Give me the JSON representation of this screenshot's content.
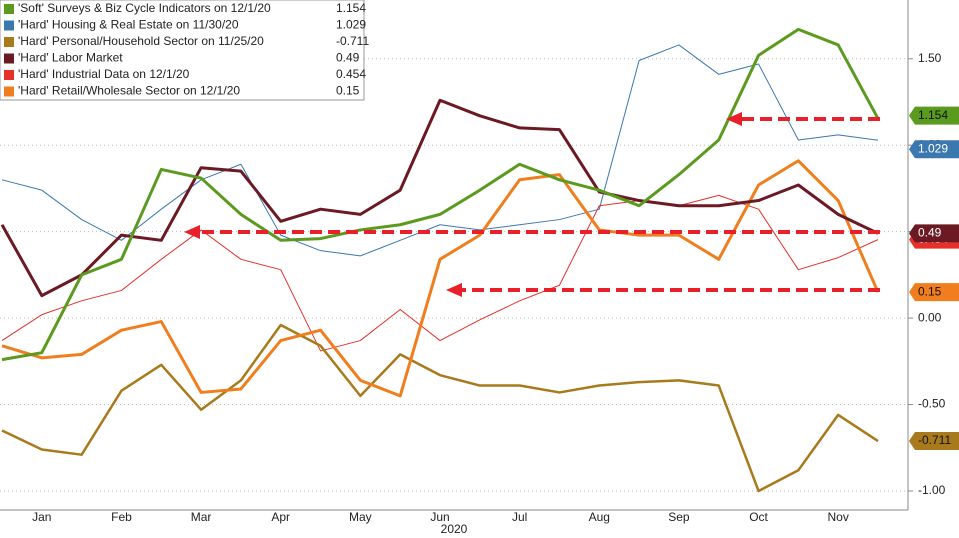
{
  "chart_data": {
    "type": "line",
    "categories": [
      null,
      "Jan",
      null,
      "Feb",
      null,
      "Mar",
      null,
      "Apr",
      null,
      "May",
      null,
      "Jun",
      null,
      "Jul",
      null,
      "Aug",
      null,
      "Sep",
      null,
      "Oct",
      null,
      "Nov",
      null
    ],
    "x_label": "2020",
    "series": [
      {
        "name": "'Soft' Surveys & Biz Cycle Indicators on 12/1/20",
        "color": "#5a9a1e",
        "values": [
          -0.24,
          -0.2,
          0.25,
          0.34,
          0.86,
          0.81,
          0.6,
          0.45,
          0.46,
          0.51,
          0.54,
          0.6,
          0.74,
          0.89,
          0.8,
          0.74,
          0.65,
          0.83,
          1.03,
          1.52,
          1.67,
          1.58,
          1.154
        ]
      },
      {
        "name": "'Hard' Housing & Real Estate on 11/30/20",
        "color": "#3b78b0",
        "values": [
          0.8,
          0.74,
          0.57,
          0.45,
          0.63,
          0.8,
          0.89,
          0.48,
          0.39,
          0.36,
          0.45,
          0.54,
          0.51,
          0.54,
          0.57,
          0.63,
          1.49,
          1.58,
          1.41,
          1.47,
          1.03,
          1.06,
          1.029
        ]
      },
      {
        "name": "'Hard' Personal/Household Sector on 11/25/20",
        "color": "#a87a1c",
        "values": [
          -0.65,
          -0.76,
          -0.79,
          -0.42,
          -0.27,
          -0.53,
          -0.36,
          -0.04,
          -0.16,
          -0.45,
          -0.21,
          -0.33,
          -0.39,
          -0.39,
          -0.43,
          -0.39,
          -0.37,
          -0.36,
          -0.39,
          -1.0,
          -0.88,
          -0.56,
          -0.711
        ]
      },
      {
        "name": "'Hard' Labor Market",
        "color": "#6b1a24",
        "values": [
          0.54,
          0.13,
          0.25,
          0.48,
          0.45,
          0.87,
          0.85,
          0.56,
          0.63,
          0.6,
          0.74,
          1.26,
          1.17,
          1.1,
          1.09,
          0.73,
          0.68,
          0.65,
          0.65,
          0.68,
          0.77,
          0.6,
          0.49
        ]
      },
      {
        "name": "'Hard' Industrial Data on 12/1/20",
        "color": "#e8302a",
        "values": [
          -0.13,
          0.02,
          0.1,
          0.16,
          0.34,
          0.51,
          0.34,
          0.28,
          -0.19,
          -0.13,
          0.05,
          -0.13,
          -0.01,
          0.1,
          0.19,
          0.65,
          0.68,
          0.65,
          0.71,
          0.63,
          0.28,
          0.35,
          0.454
        ]
      },
      {
        "name": "'Hard' Retail/Wholesale Sector on 12/1/20",
        "color": "#f07e1e",
        "values": [
          -0.16,
          -0.23,
          -0.21,
          -0.07,
          -0.02,
          -0.43,
          -0.41,
          -0.13,
          -0.07,
          -0.36,
          -0.45,
          0.34,
          0.48,
          0.8,
          0.83,
          0.51,
          0.48,
          0.48,
          0.34,
          0.77,
          0.91,
          0.68,
          0.15
        ]
      }
    ],
    "ylim": [
      -1.11,
      1.84
    ],
    "yticks": [
      {
        "value": 1.5,
        "label": "1.50"
      },
      {
        "value": 1.0,
        "label": "1.00"
      },
      {
        "value": 0.5,
        "label": "0.50"
      },
      {
        "value": 0,
        "label": "0.00"
      },
      {
        "value": -0.5,
        "label": "-0.50"
      },
      {
        "value": -1.0,
        "label": "-1.00"
      }
    ],
    "grid": true
  }
}
